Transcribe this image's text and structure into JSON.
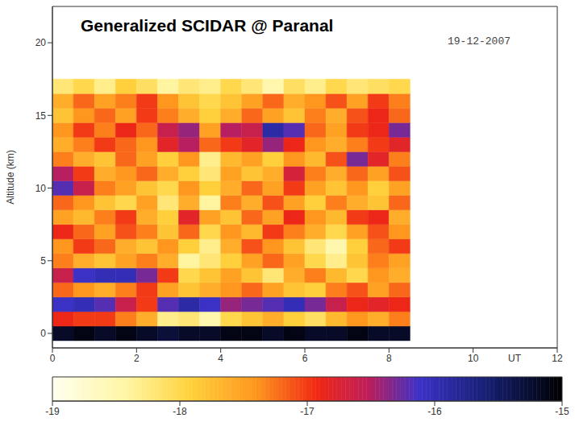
{
  "chart_data": {
    "type": "heatmap",
    "title": "Generalized SCIDAR @ Paranal",
    "annotation": "19-12-2007",
    "xlabel": "UT",
    "ylabel": "Altitude (km)",
    "xlim": [
      0,
      12
    ],
    "xticks": [
      0,
      2,
      4,
      6,
      8,
      10,
      12
    ],
    "ylim": [
      -1,
      22.5
    ],
    "yticks": [
      0,
      5,
      10,
      15,
      20
    ],
    "x": [
      0.25,
      0.75,
      1.25,
      1.75,
      2.25,
      2.75,
      3.25,
      3.75,
      4.25,
      4.75,
      5.25,
      5.75,
      6.25,
      6.75,
      7.25,
      7.75,
      8.25
    ],
    "y": [
      0,
      1,
      2,
      3,
      4,
      5,
      6,
      7,
      8,
      9,
      10,
      11,
      12,
      13,
      14,
      15,
      16,
      17
    ],
    "cells": [
      [
        -15.2,
        -15.1,
        -15.2,
        -15.1,
        -15.2,
        -15.3,
        -15.2,
        -15.2,
        -15.1,
        -15.1,
        -15.2,
        -15.1,
        -15.2,
        -15.2,
        -15.1,
        -15.2,
        -15.2
      ],
      [
        -16.9,
        -17.0,
        -17.0,
        -17.3,
        -17.6,
        -18.3,
        -18.2,
        -18.5,
        -18.0,
        -17.8,
        -17.6,
        -17.9,
        -18.1,
        -17.7,
        -17.4,
        -17.6,
        -17.3
      ],
      [
        -16.1,
        -16.0,
        -16.2,
        -16.6,
        -17.0,
        -16.2,
        -15.9,
        -16.1,
        -16.4,
        -16.3,
        -16.2,
        -16.0,
        -16.3,
        -16.6,
        -16.9,
        -16.8,
        -16.9
      ],
      [
        -17.2,
        -17.4,
        -17.6,
        -17.3,
        -17.0,
        -17.5,
        -17.8,
        -17.6,
        -17.4,
        -17.2,
        -17.5,
        -17.8,
        -17.9,
        -17.3,
        -17.1,
        -17.5,
        -17.2
      ],
      [
        -16.6,
        -16.1,
        -16.0,
        -16.0,
        -16.3,
        -17.0,
        -18.0,
        -17.8,
        -17.5,
        -17.8,
        -18.2,
        -17.6,
        -17.3,
        -17.7,
        -18.0,
        -17.4,
        -17.6
      ],
      [
        -17.3,
        -17.6,
        -17.8,
        -17.5,
        -17.3,
        -17.6,
        -18.4,
        -18.2,
        -17.9,
        -17.5,
        -17.2,
        -17.5,
        -18.0,
        -18.3,
        -17.8,
        -17.3,
        -17.5
      ],
      [
        -17.4,
        -17.0,
        -17.2,
        -17.6,
        -17.8,
        -17.4,
        -17.9,
        -18.3,
        -17.6,
        -17.1,
        -17.4,
        -17.8,
        -18.2,
        -18.5,
        -17.9,
        -17.2,
        -17.0
      ],
      [
        -16.9,
        -17.2,
        -17.5,
        -17.1,
        -17.3,
        -17.8,
        -17.2,
        -18.0,
        -17.4,
        -17.7,
        -17.0,
        -17.3,
        -17.6,
        -18.0,
        -17.5,
        -17.1,
        -17.4
      ],
      [
        -17.5,
        -17.7,
        -17.3,
        -17.0,
        -17.6,
        -17.9,
        -16.8,
        -17.5,
        -17.8,
        -17.2,
        -17.5,
        -16.9,
        -17.4,
        -17.7,
        -17.0,
        -16.9,
        -17.6
      ],
      [
        -17.2,
        -17.4,
        -17.8,
        -18.0,
        -17.5,
        -18.2,
        -17.6,
        -18.4,
        -17.3,
        -17.6,
        -17.1,
        -17.5,
        -17.9,
        -17.3,
        -17.6,
        -17.8,
        -17.2
      ],
      [
        -16.2,
        -16.6,
        -17.3,
        -17.5,
        -17.8,
        -18.0,
        -17.4,
        -17.9,
        -17.6,
        -17.2,
        -17.5,
        -17.0,
        -17.5,
        -17.8,
        -17.4,
        -17.9,
        -17.5
      ],
      [
        -16.5,
        -17.0,
        -17.6,
        -17.4,
        -17.2,
        -17.6,
        -17.9,
        -18.2,
        -17.5,
        -17.8,
        -17.6,
        -16.7,
        -17.3,
        -17.6,
        -17.2,
        -17.5,
        -17.1
      ],
      [
        -17.3,
        -17.6,
        -17.8,
        -17.2,
        -17.5,
        -17.9,
        -17.4,
        -18.3,
        -17.7,
        -17.5,
        -17.9,
        -17.4,
        -17.7,
        -17.1,
        -16.3,
        -16.8,
        -17.3
      ],
      [
        -17.6,
        -17.3,
        -17.0,
        -17.2,
        -17.4,
        -16.8,
        -16.5,
        -17.2,
        -17.0,
        -16.8,
        -16.4,
        -16.9,
        -17.4,
        -17.6,
        -17.3,
        -17.0,
        -16.8
      ],
      [
        -17.4,
        -17.0,
        -17.3,
        -16.9,
        -17.2,
        -16.6,
        -16.4,
        -17.5,
        -16.5,
        -16.6,
        -15.9,
        -16.2,
        -17.2,
        -17.5,
        -17.0,
        -16.9,
        -16.3
      ],
      [
        -17.8,
        -17.4,
        -17.2,
        -17.5,
        -17.0,
        -17.3,
        -17.6,
        -17.9,
        -17.6,
        -17.2,
        -17.5,
        -17.8,
        -17.3,
        -17.6,
        -17.1,
        -16.9,
        -17.2
      ],
      [
        -17.6,
        -17.2,
        -17.5,
        -17.3,
        -17.0,
        -17.4,
        -17.8,
        -18.0,
        -17.8,
        -17.5,
        -17.2,
        -17.6,
        -17.4,
        -17.1,
        -17.5,
        -17.0,
        -17.3
      ],
      [
        -18.2,
        -18.0,
        -18.3,
        -17.9,
        -18.1,
        -18.4,
        -18.2,
        -18.3,
        -18.0,
        -18.2,
        -18.5,
        -18.1,
        -18.3,
        -18.0,
        -18.2,
        -18.1,
        -18.0
      ]
    ],
    "colorbar": {
      "range": [
        -19,
        -15
      ],
      "ticks": [
        -19,
        -18,
        -17,
        -16,
        -15
      ]
    }
  }
}
